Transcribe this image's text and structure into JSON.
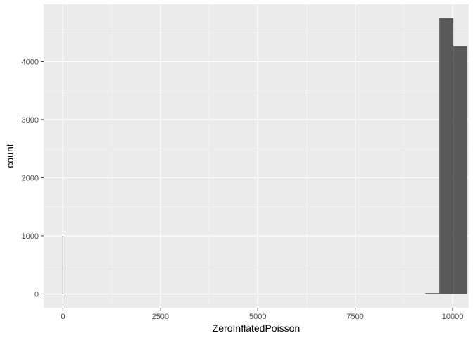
{
  "chart_data": {
    "type": "bar",
    "subtype": "histogram",
    "xlabel": "ZeroInflatedPoisson",
    "ylabel": "count",
    "xlim": [
      -495,
      10415
    ],
    "ylim": [
      -237.5,
      4987.5
    ],
    "x_ticks": [
      0,
      2500,
      5000,
      7500,
      10000
    ],
    "y_ticks": [
      0,
      1000,
      2000,
      3000,
      4000
    ],
    "x_tick_labels": [
      "0",
      "2500",
      "5000",
      "7500",
      "10000"
    ],
    "y_tick_labels": [
      "0",
      "1000",
      "2000",
      "3000",
      "4000"
    ],
    "grid": true,
    "legend": "none",
    "bins": [
      {
        "xmin": -5,
        "xmax": 5,
        "count": 1000
      },
      {
        "xmin": 9300,
        "xmax": 9660,
        "count": 15
      },
      {
        "xmin": 9660,
        "xmax": 10020,
        "count": 4750
      },
      {
        "xmin": 10020,
        "xmax": 10380,
        "count": 4265
      }
    ],
    "colors": {
      "panel": "#EBEBEB",
      "grid_major": "#FFFFFF",
      "grid_minor": "#F5F5F5",
      "bar_fill": "#595959",
      "zero_bar": "#000000",
      "tick": "#333333"
    }
  }
}
